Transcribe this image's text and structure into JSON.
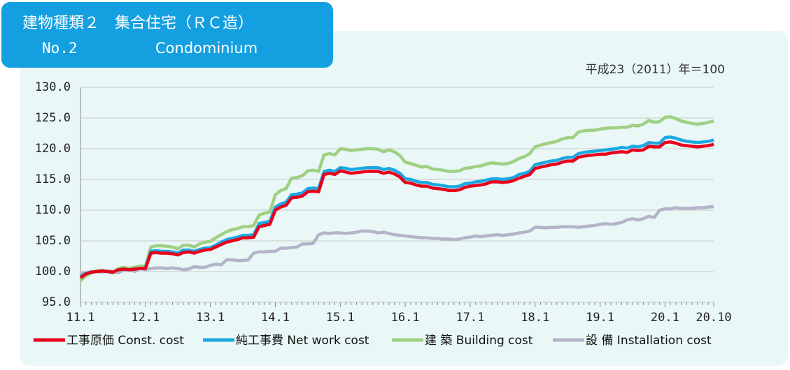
{
  "chart_data": {
    "type": "line",
    "title": "建物種類２　集合住宅（ＲＣ造）",
    "number": "No.2",
    "subtitle": "Condominium",
    "note": "平成23（2011）年＝100",
    "categories": [
      "11.1",
      null,
      null,
      null,
      null,
      null,
      null,
      null,
      null,
      null,
      null,
      null,
      "12.1",
      null,
      null,
      null,
      null,
      null,
      null,
      null,
      null,
      null,
      null,
      null,
      "13.1",
      null,
      null,
      null,
      null,
      null,
      null,
      null,
      null,
      null,
      null,
      null,
      "14.1",
      null,
      null,
      null,
      null,
      null,
      null,
      null,
      null,
      null,
      null,
      null,
      "15.1",
      null,
      null,
      null,
      null,
      null,
      null,
      null,
      null,
      null,
      null,
      null,
      "16.1",
      null,
      null,
      null,
      null,
      null,
      null,
      null,
      null,
      null,
      null,
      null,
      "17.1",
      null,
      null,
      null,
      null,
      null,
      null,
      null,
      null,
      null,
      null,
      null,
      "18.1",
      null,
      null,
      null,
      null,
      null,
      null,
      null,
      null,
      null,
      null,
      null,
      "19.1",
      null,
      null,
      null,
      null,
      null,
      null,
      null,
      null,
      null,
      null,
      null,
      "20.1",
      null,
      null,
      null,
      null,
      null,
      null,
      null,
      null,
      "20.10"
    ],
    "series": [
      {
        "name": "工事原価 Const. cost",
        "color": "#e8001c",
        "values": [
          99.0,
          99.6,
          99.9,
          100.0,
          100.1,
          100.0,
          99.9,
          100.3,
          100.4,
          100.3,
          100.4,
          100.5,
          100.5,
          103.0,
          103.1,
          103.0,
          103.0,
          102.9,
          102.7,
          103.1,
          103.2,
          103.0,
          103.3,
          103.5,
          103.6,
          104.0,
          104.4,
          104.8,
          105.0,
          105.2,
          105.5,
          105.5,
          105.6,
          107.3,
          107.5,
          107.7,
          110.0,
          110.5,
          110.8,
          112.0,
          112.1,
          112.3,
          113.0,
          113.1,
          113.0,
          115.8,
          116.0,
          115.8,
          116.4,
          116.2,
          116.0,
          116.1,
          116.2,
          116.3,
          116.3,
          116.3,
          116.0,
          116.2,
          115.9,
          115.4,
          114.5,
          114.4,
          114.1,
          113.9,
          113.9,
          113.6,
          113.5,
          113.4,
          113.2,
          113.2,
          113.3,
          113.7,
          113.9,
          114.0,
          114.1,
          114.3,
          114.6,
          114.6,
          114.5,
          114.6,
          114.8,
          115.2,
          115.5,
          115.8,
          116.8,
          117.0,
          117.2,
          117.4,
          117.5,
          117.8,
          118.0,
          118.0,
          118.6,
          118.8,
          118.9,
          119.0,
          119.1,
          119.1,
          119.3,
          119.4,
          119.5,
          119.4,
          119.8,
          119.7,
          119.8,
          120.4,
          120.3,
          120.3,
          121.0,
          121.1,
          120.9,
          120.6,
          120.5,
          120.4,
          120.3,
          120.4,
          120.5,
          120.7
        ]
      },
      {
        "name": "純工事費 Net work cost",
        "color": "#1ba8e2",
        "values": [
          99.2,
          99.7,
          99.9,
          100.0,
          100.1,
          100.0,
          99.9,
          100.3,
          100.4,
          100.3,
          100.4,
          100.5,
          100.6,
          103.3,
          103.4,
          103.3,
          103.3,
          103.2,
          103.0,
          103.5,
          103.5,
          103.3,
          103.6,
          103.8,
          103.9,
          104.3,
          104.8,
          105.2,
          105.4,
          105.6,
          105.9,
          105.9,
          106.0,
          107.8,
          108.0,
          108.2,
          110.5,
          111.0,
          111.3,
          112.5,
          112.6,
          112.8,
          113.5,
          113.6,
          113.5,
          116.3,
          116.5,
          116.3,
          116.9,
          116.8,
          116.6,
          116.7,
          116.8,
          116.9,
          116.9,
          116.9,
          116.6,
          116.8,
          116.5,
          116.0,
          115.1,
          115.0,
          114.7,
          114.5,
          114.5,
          114.2,
          114.1,
          114.0,
          113.8,
          113.8,
          113.9,
          114.3,
          114.4,
          114.6,
          114.7,
          114.9,
          115.1,
          115.1,
          115.0,
          115.1,
          115.3,
          115.8,
          116.0,
          116.3,
          117.4,
          117.6,
          117.8,
          118.0,
          118.1,
          118.4,
          118.6,
          118.6,
          119.2,
          119.4,
          119.5,
          119.6,
          119.7,
          119.8,
          119.9,
          120.0,
          120.2,
          120.1,
          120.4,
          120.3,
          120.5,
          121.0,
          120.9,
          120.9,
          121.8,
          121.9,
          121.7,
          121.4,
          121.2,
          121.1,
          121.0,
          121.1,
          121.2,
          121.4
        ]
      },
      {
        "name": "建 築 Building cost",
        "color": "#9fd083",
        "values": [
          98.5,
          99.3,
          99.8,
          100.1,
          100.2,
          100.0,
          99.8,
          100.5,
          100.7,
          100.5,
          100.7,
          100.9,
          100.9,
          104.0,
          104.2,
          104.2,
          104.1,
          104.0,
          103.7,
          104.3,
          104.3,
          104.0,
          104.5,
          104.8,
          104.9,
          105.5,
          106.0,
          106.5,
          106.8,
          107.0,
          107.3,
          107.3,
          107.5,
          109.2,
          109.5,
          109.7,
          112.5,
          113.2,
          113.5,
          115.2,
          115.3,
          115.6,
          116.4,
          116.5,
          116.3,
          119.0,
          119.2,
          119.0,
          120.0,
          119.9,
          119.7,
          119.8,
          119.9,
          120.0,
          120.0,
          119.9,
          119.5,
          119.8,
          119.5,
          118.9,
          117.8,
          117.6,
          117.3,
          117.0,
          117.1,
          116.7,
          116.6,
          116.5,
          116.3,
          116.3,
          116.4,
          116.8,
          116.9,
          117.1,
          117.2,
          117.5,
          117.7,
          117.6,
          117.5,
          117.6,
          117.9,
          118.4,
          118.7,
          119.2,
          120.3,
          120.6,
          120.8,
          121.0,
          121.2,
          121.6,
          121.8,
          121.8,
          122.7,
          122.9,
          123.0,
          123.0,
          123.2,
          123.3,
          123.4,
          123.4,
          123.5,
          123.5,
          123.8,
          123.7,
          124.0,
          124.6,
          124.3,
          124.4,
          125.1,
          125.2,
          124.9,
          124.5,
          124.3,
          124.1,
          124.0,
          124.1,
          124.3,
          124.5
        ]
      },
      {
        "name": "設 備 Installation cost",
        "color": "#b3b3c9",
        "values": [
          99.7,
          99.8,
          100.0,
          100.0,
          99.9,
          100.1,
          100.0,
          99.8,
          100.3,
          100.4,
          100.0,
          100.5,
          100.3,
          100.5,
          100.6,
          100.6,
          100.5,
          100.6,
          100.5,
          100.3,
          100.4,
          100.8,
          100.7,
          100.7,
          101.0,
          101.2,
          101.1,
          101.9,
          101.9,
          101.8,
          101.8,
          101.9,
          103.0,
          103.2,
          103.2,
          103.3,
          103.3,
          103.8,
          103.8,
          103.9,
          104.0,
          104.5,
          104.5,
          104.6,
          106.0,
          106.3,
          106.2,
          106.3,
          106.3,
          106.2,
          106.3,
          106.4,
          106.6,
          106.6,
          106.5,
          106.3,
          106.4,
          106.2,
          106.0,
          105.9,
          105.8,
          105.7,
          105.6,
          105.5,
          105.5,
          105.4,
          105.4,
          105.3,
          105.3,
          105.2,
          105.3,
          105.5,
          105.6,
          105.8,
          105.7,
          105.8,
          105.9,
          106.0,
          105.9,
          106.0,
          106.1,
          106.3,
          106.4,
          106.6,
          107.2,
          107.2,
          107.1,
          107.2,
          107.2,
          107.3,
          107.3,
          107.3,
          107.2,
          107.3,
          107.4,
          107.5,
          107.7,
          107.8,
          107.7,
          107.8,
          108.0,
          108.4,
          108.6,
          108.4,
          108.6,
          109.0,
          108.8,
          110.0,
          110.2,
          110.2,
          110.4,
          110.3,
          110.3,
          110.3,
          110.4,
          110.4,
          110.5,
          110.6
        ]
      }
    ],
    "ylim": [
      95,
      130
    ],
    "yticks": [
      {
        "value": 95,
        "label": "95.0"
      },
      {
        "value": 100,
        "label": "100.0"
      },
      {
        "value": 105,
        "label": "105.0"
      },
      {
        "value": 110,
        "label": "110.0"
      },
      {
        "value": 115,
        "label": "115.0"
      },
      {
        "value": 120,
        "label": "120.0"
      },
      {
        "value": 125,
        "label": "125.0"
      },
      {
        "value": 130,
        "label": "130.0"
      }
    ],
    "grid": true
  }
}
